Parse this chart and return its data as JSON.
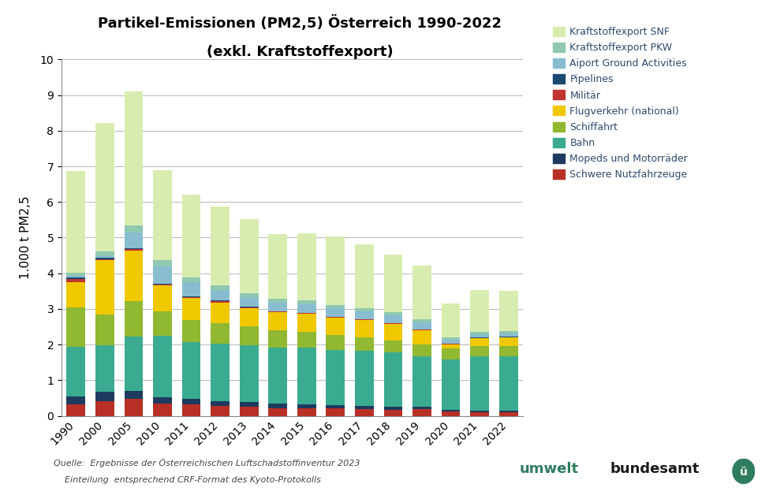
{
  "title1": "Partikel-Emissionen (PM2,5) Österreich 1990-2022",
  "title2": "(exkl. Kraftstoffexport)",
  "ylabel": "1.000 t PM2,5",
  "source_line1": "Quelle:  Ergebnisse der Österreichischen Luftschadstoffinventur 2023",
  "source_line2": "    Einteilung  entsprechend CRF-Format des Kyoto-Protokolls",
  "years": [
    "1990",
    "2000",
    "2005",
    "2010",
    "2011",
    "2012",
    "2013",
    "2014",
    "2015",
    "2016",
    "2017",
    "2018",
    "2019",
    "2020",
    "2021",
    "2022"
  ],
  "category_list": [
    "Schwere Nutzfahrzeuge",
    "Mopeds und Motorräder",
    "Bahn",
    "Schiffahrt",
    "Flugverkehr (national)",
    "Militär",
    "Pipelines",
    "Aiport Ground Activities",
    "Kraftstoffexport PKW",
    "Kraftstoffexport SNF"
  ],
  "colors_list": [
    "#b83025",
    "#1e3a5f",
    "#3aab90",
    "#90b830",
    "#f0c800",
    "#c03530",
    "#1a4a72",
    "#88bdd0",
    "#90c8b0",
    "#d8ecb0"
  ],
  "data": {
    "Schwere Nutzfahrzeuge": [
      0.32,
      0.42,
      0.48,
      0.35,
      0.32,
      0.28,
      0.25,
      0.22,
      0.22,
      0.2,
      0.18,
      0.17,
      0.18,
      0.12,
      0.1,
      0.1
    ],
    "Mopeds und Motorräder": [
      0.22,
      0.25,
      0.22,
      0.18,
      0.16,
      0.14,
      0.13,
      0.12,
      0.11,
      0.1,
      0.09,
      0.08,
      0.08,
      0.05,
      0.05,
      0.05
    ],
    "Bahn": [
      1.4,
      1.32,
      1.52,
      1.72,
      1.58,
      1.6,
      1.6,
      1.58,
      1.58,
      1.55,
      1.55,
      1.52,
      1.42,
      1.42,
      1.52,
      1.52
    ],
    "Schiffahrt": [
      1.1,
      0.85,
      1.0,
      0.68,
      0.62,
      0.58,
      0.52,
      0.48,
      0.45,
      0.42,
      0.38,
      0.35,
      0.32,
      0.3,
      0.28,
      0.28
    ],
    "Flugverkehr (national)": [
      0.72,
      1.52,
      1.42,
      0.72,
      0.62,
      0.58,
      0.52,
      0.5,
      0.5,
      0.48,
      0.48,
      0.45,
      0.4,
      0.12,
      0.22,
      0.25
    ],
    "Militär": [
      0.08,
      0.04,
      0.04,
      0.03,
      0.03,
      0.03,
      0.03,
      0.02,
      0.02,
      0.02,
      0.02,
      0.02,
      0.02,
      0.01,
      0.01,
      0.01
    ],
    "Pipelines": [
      0.04,
      0.03,
      0.02,
      0.02,
      0.02,
      0.02,
      0.02,
      0.01,
      0.01,
      0.01,
      0.01,
      0.01,
      0.01,
      0.01,
      0.01,
      0.01
    ],
    "Aiport Ground Activities": [
      0.05,
      0.05,
      0.45,
      0.5,
      0.4,
      0.3,
      0.25,
      0.24,
      0.24,
      0.23,
      0.22,
      0.22,
      0.19,
      0.1,
      0.09,
      0.09
    ],
    "Kraftstoffexport PKW": [
      0.08,
      0.14,
      0.2,
      0.16,
      0.14,
      0.13,
      0.12,
      0.11,
      0.1,
      0.1,
      0.09,
      0.08,
      0.08,
      0.07,
      0.07,
      0.07
    ],
    "Kraftstoffexport SNF": [
      2.85,
      3.6,
      3.75,
      2.52,
      2.32,
      2.22,
      2.08,
      1.82,
      1.88,
      1.92,
      1.78,
      1.62,
      1.52,
      0.95,
      1.18,
      1.12
    ]
  },
  "ylim": [
    0,
    10
  ],
  "yticks": [
    0,
    1,
    2,
    3,
    4,
    5,
    6,
    7,
    8,
    9,
    10
  ]
}
